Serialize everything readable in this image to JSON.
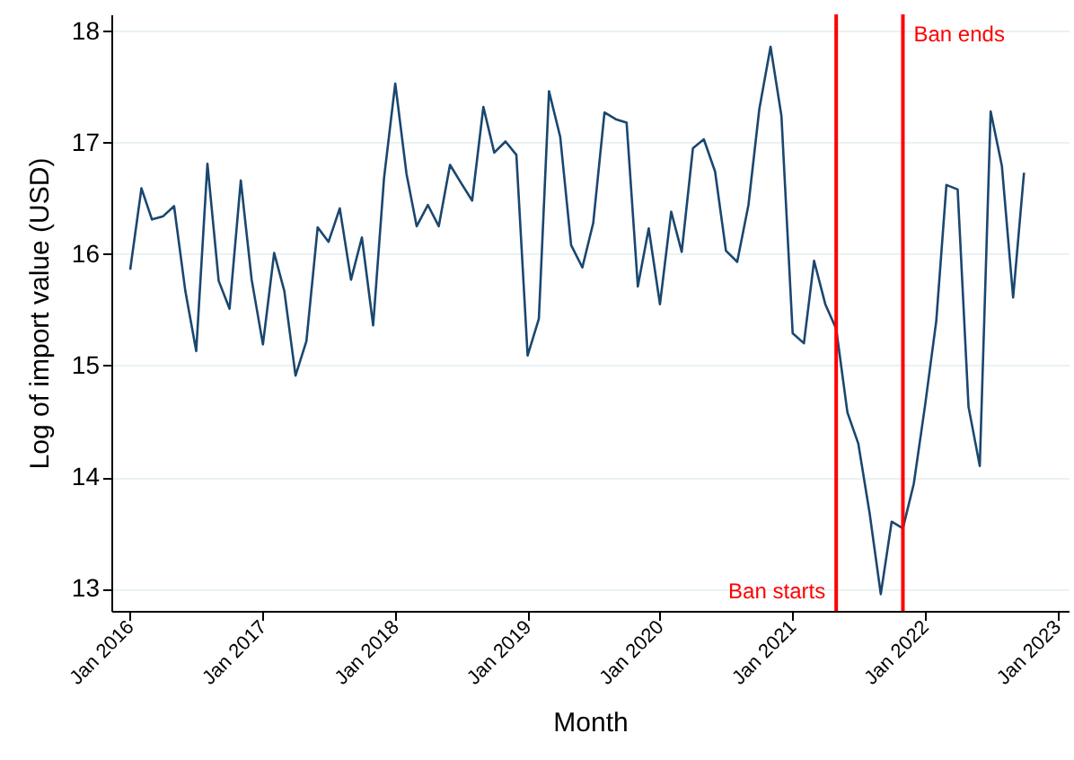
{
  "chart_data": {
    "type": "line",
    "xlabel": "Month",
    "ylabel": "Log of import value (USD)",
    "x": [
      "2016-01",
      "2016-02",
      "2016-03",
      "2016-04",
      "2016-05",
      "2016-06",
      "2016-07",
      "2016-08",
      "2016-09",
      "2016-10",
      "2016-11",
      "2016-12",
      "2017-01",
      "2017-02",
      "2017-03",
      "2017-04",
      "2017-05",
      "2017-06",
      "2017-07",
      "2017-08",
      "2017-09",
      "2017-10",
      "2017-11",
      "2017-12",
      "2018-01",
      "2018-02",
      "2018-03",
      "2018-04",
      "2018-05",
      "2018-06",
      "2018-07",
      "2018-08",
      "2018-09",
      "2018-10",
      "2018-11",
      "2018-12",
      "2019-01",
      "2019-02",
      "2019-03",
      "2019-04",
      "2019-05",
      "2019-06",
      "2019-07",
      "2019-08",
      "2019-09",
      "2019-10",
      "2019-11",
      "2019-12",
      "2020-01",
      "2020-02",
      "2020-03",
      "2020-04",
      "2020-05",
      "2020-06",
      "2020-07",
      "2020-08",
      "2020-09",
      "2020-10",
      "2020-11",
      "2020-12",
      "2021-01",
      "2021-02",
      "2021-03",
      "2021-04",
      "2021-05",
      "2021-06",
      "2021-07",
      "2021-08",
      "2021-09",
      "2021-10",
      "2021-11",
      "2021-12",
      "2022-01",
      "2022-02",
      "2022-03",
      "2022-04",
      "2022-05",
      "2022-06",
      "2022-07",
      "2022-08",
      "2022-09",
      "2022-10"
    ],
    "series": [
      {
        "color": "#1a476f",
        "values": [
          15.86,
          16.59,
          16.31,
          16.34,
          16.43,
          15.67,
          15.13,
          16.81,
          15.76,
          15.51,
          16.66,
          15.77,
          15.19,
          16.01,
          15.67,
          14.91,
          15.22,
          16.24,
          16.11,
          16.41,
          15.77,
          16.15,
          15.36,
          16.68,
          17.53,
          16.72,
          16.25,
          16.44,
          16.25,
          16.8,
          16.64,
          16.48,
          17.32,
          16.91,
          17.01,
          16.89,
          15.09,
          15.42,
          17.46,
          17.05,
          16.08,
          15.88,
          16.28,
          17.27,
          17.21,
          17.18,
          15.71,
          16.23,
          15.55,
          16.38,
          16.02,
          16.95,
          17.03,
          16.74,
          16.03,
          15.93,
          16.44,
          17.3,
          17.86,
          17.24,
          15.29,
          15.2,
          15.94,
          15.55,
          15.33,
          14.58,
          14.3,
          13.68,
          12.95,
          13.6,
          13.54,
          13.94,
          14.64,
          15.4,
          16.62,
          16.58,
          14.63,
          14.1,
          17.28,
          16.79,
          15.61,
          16.73
        ]
      }
    ],
    "xlim": [
      "2015-11-10",
      "2023-02-01"
    ],
    "xticks": [
      {
        "value": "2016-01",
        "label": "Jan 2016"
      },
      {
        "value": "2017-01",
        "label": "Jan 2017"
      },
      {
        "value": "2018-01",
        "label": "Jan 2018"
      },
      {
        "value": "2019-01",
        "label": "Jan 2019"
      },
      {
        "value": "2020-01",
        "label": "Jan 2020"
      },
      {
        "value": "2021-01",
        "label": "Jan 2021"
      },
      {
        "value": "2022-01",
        "label": "Jan 2022"
      },
      {
        "value": "2023-01",
        "label": "Jan 2023"
      }
    ],
    "ylim": [
      12.8,
      18.15
    ],
    "yticks": [
      13,
      14,
      15,
      16,
      17,
      18
    ],
    "grid": "y",
    "ref_lines": [
      {
        "axis": "x",
        "value": "2021-05",
        "label": "Ban starts",
        "color": "#ff0000"
      },
      {
        "axis": "x",
        "value": "2021-11",
        "label": "Ban ends",
        "color": "#ff0000"
      }
    ]
  }
}
